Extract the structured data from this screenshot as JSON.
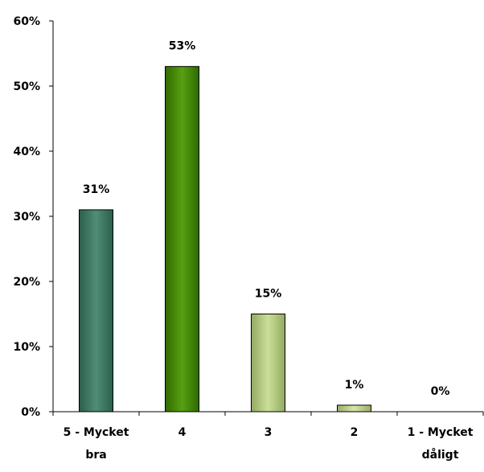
{
  "chart_data": {
    "type": "bar",
    "categories": [
      [
        "5 - Mycket",
        "bra"
      ],
      [
        "4"
      ],
      [
        "3"
      ],
      [
        "2"
      ],
      [
        "1 - Mycket",
        "dåligt"
      ]
    ],
    "values": [
      31,
      53,
      15,
      1,
      0
    ],
    "value_labels": [
      "31%",
      "53%",
      "15%",
      "1%",
      "0%"
    ],
    "yticks": [
      "0%",
      "10%",
      "20%",
      "30%",
      "40%",
      "50%",
      "60%"
    ],
    "ylim": [
      0,
      60
    ],
    "grid": false,
    "legend": "none",
    "bar_colors": [
      [
        "#2c5e4a",
        "#4f8d76",
        "#2c5e4a"
      ],
      [
        "#2f6a00",
        "#58a012",
        "#2f6a00"
      ],
      [
        "#93aa62",
        "#cadf98",
        "#93aa62"
      ],
      [
        "#99ad6a",
        "#d6e6a8",
        "#99ad6a"
      ],
      [
        "#99ad6a",
        "#d6e6a8",
        "#99ad6a"
      ]
    ]
  }
}
